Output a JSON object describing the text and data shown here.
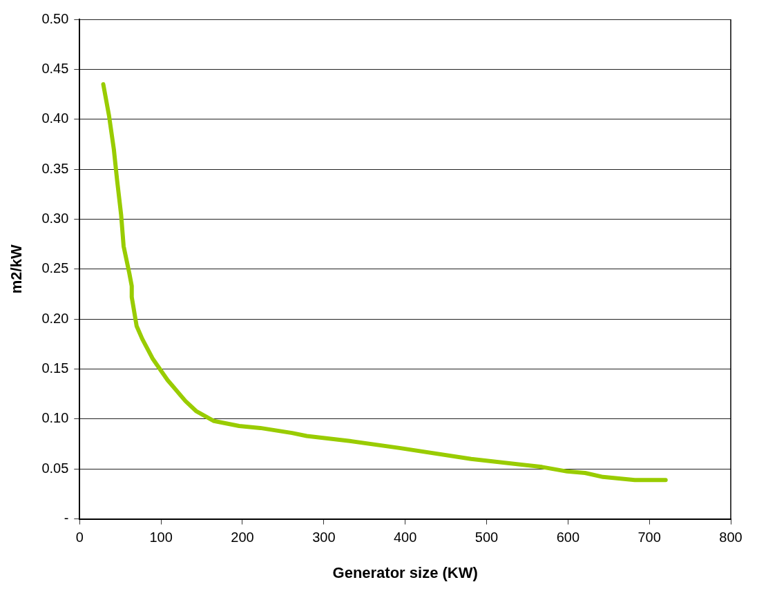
{
  "chart_data": {
    "type": "line",
    "xlabel": "Generator size (KW)",
    "ylabel": "m2/kW",
    "x": [
      29,
      36,
      42,
      46,
      51,
      54,
      61,
      64,
      64,
      70,
      77,
      90,
      108,
      130,
      143,
      165,
      196,
      222,
      261,
      279,
      332,
      393,
      481,
      568,
      599,
      621,
      643,
      682,
      720
    ],
    "series": [
      {
        "color": "#99cc00",
        "values": [
          0.435,
          0.404,
          0.37,
          0.339,
          0.304,
          0.273,
          0.246,
          0.233,
          0.222,
          0.193,
          0.18,
          0.16,
          0.139,
          0.118,
          0.108,
          0.098,
          0.093,
          0.091,
          0.086,
          0.083,
          0.078,
          0.071,
          0.06,
          0.052,
          0.0475,
          0.046,
          0.042,
          0.039,
          0.039
        ]
      }
    ],
    "xlim": [
      0,
      800
    ],
    "xticks": [
      0,
      100,
      200,
      300,
      400,
      500,
      600,
      700,
      800
    ],
    "ylim": [
      0,
      0.5
    ],
    "yticks": [
      {
        "value": 0,
        "label": "-"
      },
      0.05,
      {
        "value": 0.1,
        "label": "0.10"
      },
      0.15,
      {
        "value": 0.2,
        "label": "0.20"
      },
      0.25,
      {
        "value": 0.3,
        "label": "0.30"
      },
      0.35,
      {
        "value": 0.4,
        "label": "0.40"
      },
      0.45,
      {
        "value": 0.5,
        "label": "0.50"
      }
    ],
    "grid": "y",
    "legend": false,
    "marker": "none",
    "line_style": "solid"
  }
}
